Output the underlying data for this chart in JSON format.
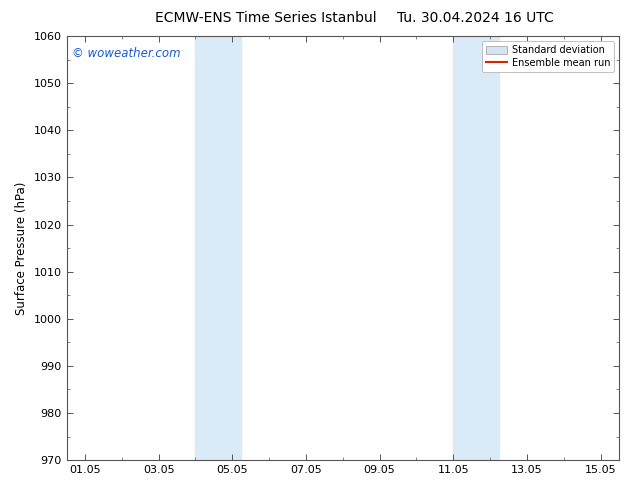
{
  "title_left": "ECMW-ENS Time Series Istanbul",
  "title_right": "Tu. 30.04.2024 16 UTC",
  "ylabel": "Surface Pressure (hPa)",
  "background_color": "#ffffff",
  "plot_bg_color": "#ffffff",
  "ylim": [
    970,
    1060
  ],
  "yticks": [
    970,
    980,
    990,
    1000,
    1010,
    1020,
    1030,
    1040,
    1050,
    1060
  ],
  "xtick_labels": [
    "01.05",
    "03.05",
    "05.05",
    "07.05",
    "09.05",
    "11.05",
    "13.05",
    "15.05"
  ],
  "xtick_positions": [
    1,
    3,
    5,
    7,
    9,
    11,
    13,
    15
  ],
  "xlim": [
    0.5,
    15.5
  ],
  "shaded_regions": [
    {
      "xmin": 4.0,
      "xmax": 5.25,
      "color": "#daeaf7"
    },
    {
      "xmin": 11.0,
      "xmax": 12.25,
      "color": "#daeaf7"
    }
  ],
  "watermark_text": "© woweather.com",
  "watermark_color": "#1a5acd",
  "legend_std_color": "#d4e4f0",
  "legend_std_edge": "#aaaaaa",
  "legend_mean_color": "#dd2200",
  "title_fontsize": 10,
  "tick_fontsize": 8,
  "ylabel_fontsize": 8.5
}
